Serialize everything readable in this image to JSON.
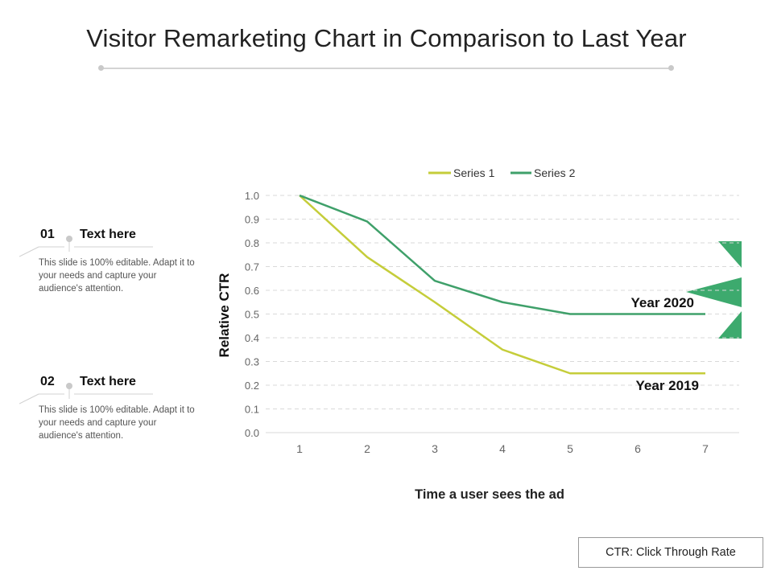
{
  "page": {
    "title": "Visitor Remarketing Chart in Comparison to Last Year",
    "footnote": "CTR: Click Through Rate"
  },
  "items": [
    {
      "number": "01",
      "heading": "Text here",
      "description": "This slide is 100% editable. Adapt it to your needs and capture your audience's attention."
    },
    {
      "number": "02",
      "heading": "Text here",
      "description": "This slide is 100% editable. Adapt it to your needs and capture your audience's attention."
    }
  ],
  "colors": {
    "series1": "#c5cd3a",
    "series2": "#3fa06a",
    "accent_triangles": "#3daa6e",
    "grid": "#d9d9d9"
  },
  "chart_data": {
    "type": "line",
    "title": "",
    "xlabel": "Time a user sees the ad",
    "ylabel": "Relative CTR",
    "x": [
      1,
      2,
      3,
      4,
      5,
      6,
      7
    ],
    "y_ticks": [
      "0.0",
      "0.1",
      "0.2",
      "0.3",
      "0.4",
      "0.5",
      "0.6",
      "0.7",
      "0.8",
      "0.9",
      "1.0"
    ],
    "ylim": [
      0,
      1.0
    ],
    "grid": true,
    "legend_position": "top",
    "series": [
      {
        "name": "Series 1",
        "values": [
          1.0,
          0.74,
          0.55,
          0.35,
          0.25,
          0.25,
          0.25
        ],
        "label": "Year 2019"
      },
      {
        "name": "Series 2",
        "values": [
          1.0,
          0.89,
          0.64,
          0.55,
          0.5,
          0.5,
          0.5
        ],
        "label": "Year 2020"
      }
    ]
  }
}
